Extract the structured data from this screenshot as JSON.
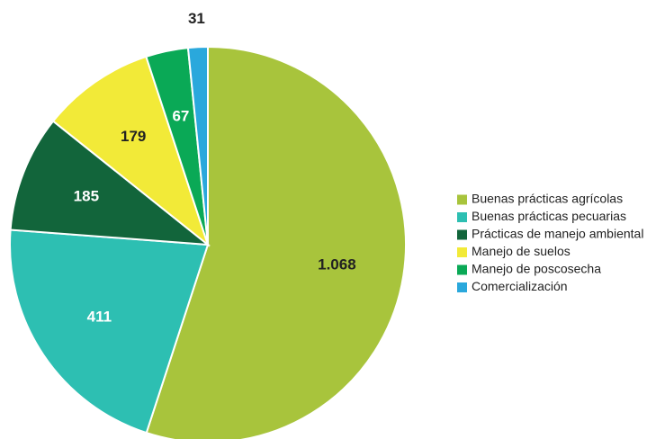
{
  "chart_data": {
    "type": "pie",
    "categories": [
      "Buenas prácticas agrícolas",
      "Buenas prácticas pecuarias",
      "Prácticas de manejo ambiental",
      "Manejo de suelos",
      "Manejo de poscosecha",
      "Comercialización"
    ],
    "values": [
      1068,
      411,
      185,
      179,
      67,
      31
    ],
    "value_labels": [
      "1.068",
      "411",
      "185",
      "179",
      "67",
      "31"
    ],
    "colors": [
      "#a8c43c",
      "#2dbfb2",
      "#12653b",
      "#f2ea38",
      "#0aa956",
      "#2aa8dc"
    ],
    "legend": "right"
  }
}
